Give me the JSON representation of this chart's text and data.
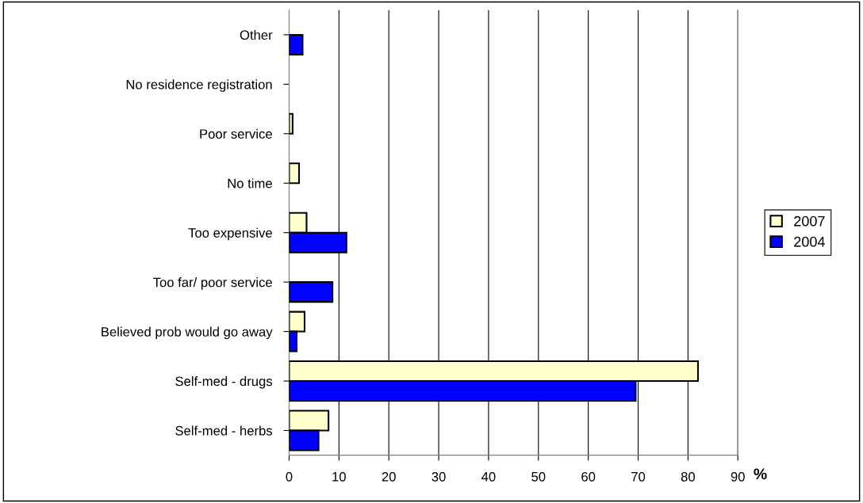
{
  "chart_data": {
    "type": "bar",
    "orientation": "horizontal",
    "xlabel": "%",
    "categories": [
      "Other",
      "No residence registration",
      "Poor service",
      "No time",
      "Too expensive",
      "Too far/ poor service",
      "Believed prob would go away",
      "Self-med - drugs",
      "Self-med - herbs"
    ],
    "series": [
      {
        "name": "2007",
        "color": "#ffffcc",
        "values": [
          null,
          null,
          0.7,
          2,
          3.5,
          null,
          3.1,
          82,
          7.9
        ]
      },
      {
        "name": "2004",
        "color": "#0000ff",
        "values": [
          2.7,
          null,
          null,
          null,
          11.5,
          8.7,
          1.5,
          69.5,
          5.9
        ]
      }
    ],
    "xlim": [
      0,
      90
    ],
    "xticks": [
      0,
      10,
      20,
      30,
      40,
      50,
      60,
      70,
      80,
      90
    ],
    "grid": "x",
    "legend": "right"
  }
}
